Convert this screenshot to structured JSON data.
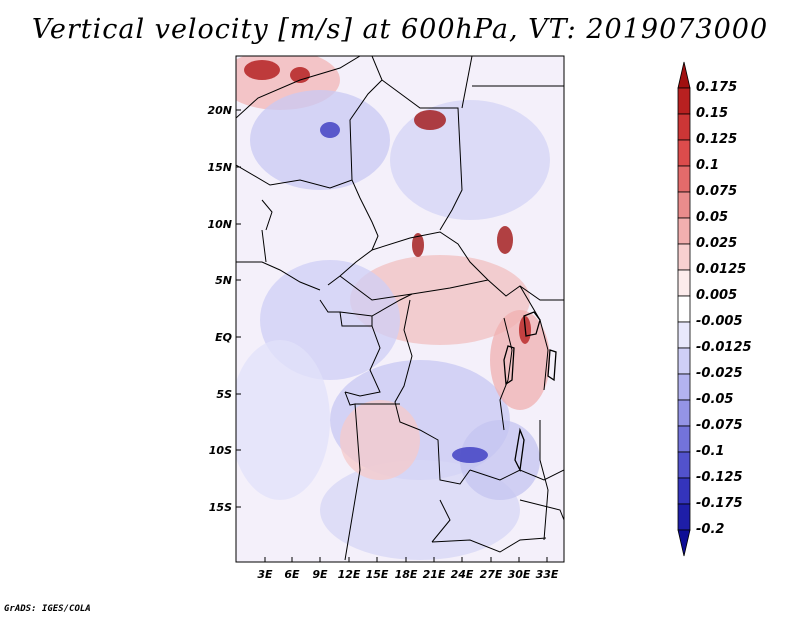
{
  "title": "Vertical velocity [m/s] at 600hPa, VT: 2019073000",
  "credit": "GrADS: IGES/COLA",
  "lat_labels": [
    "20N",
    "15N",
    "10N",
    "5N",
    "EQ",
    "5S",
    "10S",
    "15S"
  ],
  "lon_labels": [
    "3E",
    "6E",
    "9E",
    "12E",
    "15E",
    "18E",
    "21E",
    "24E",
    "27E",
    "30E",
    "33E"
  ],
  "colorbar": {
    "labels": [
      "0.175",
      "0.15",
      "0.125",
      "0.1",
      "0.075",
      "0.05",
      "0.025",
      "0.0125",
      "0.005",
      "-0.005",
      "-0.0125",
      "-0.025",
      "-0.05",
      "-0.075",
      "-0.1",
      "-0.125",
      "-0.175",
      "-0.2"
    ],
    "colors": [
      "#a01010",
      "#b82020",
      "#cc3636",
      "#dc4c4c",
      "#e36b6b",
      "#ea8c8c",
      "#f2afaf",
      "#f8d0d0",
      "#fcecec",
      "#ffffff",
      "#e8e8fc",
      "#cfcff7",
      "#b3b3f0",
      "#9494e6",
      "#7373da",
      "#5252cc",
      "#3434bc",
      "#1e1ea8",
      "#0e0e96"
    ]
  }
}
